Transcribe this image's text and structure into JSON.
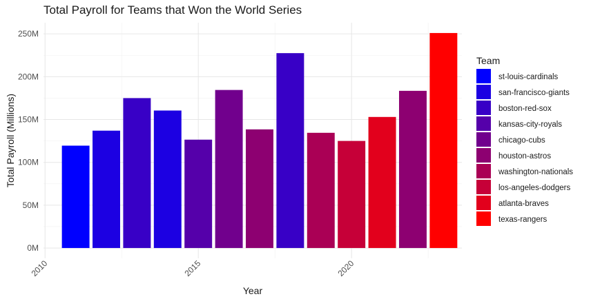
{
  "chart_data": {
    "type": "bar",
    "title": "Total Payroll for Teams that Won the World Series",
    "xlabel": "Year",
    "ylabel": "Total Payroll (Millions)",
    "x_ticks": [
      2010,
      2015,
      2020
    ],
    "x_tick_labels": [
      "2010",
      "2015",
      "2020"
    ],
    "xlim": [
      2009.95,
      2023.6
    ],
    "y_ticks": [
      0,
      50,
      100,
      150,
      200,
      250
    ],
    "y_tick_labels": [
      "0M",
      "50M",
      "100M",
      "150M",
      "200M",
      "250M"
    ],
    "ylim": [
      -12,
      263
    ],
    "grid": true,
    "legend": {
      "title": "Team",
      "position": "right",
      "entries": [
        {
          "label": "st-louis-cardinals",
          "color": "#0000FF"
        },
        {
          "label": "san-francisco-giants",
          "color": "#1C00E2"
        },
        {
          "label": "boston-red-sox",
          "color": "#3800C6"
        },
        {
          "label": "kansas-city-royals",
          "color": "#5500AA"
        },
        {
          "label": "chicago-cubs",
          "color": "#71008D"
        },
        {
          "label": "houston-astros",
          "color": "#8D0071"
        },
        {
          "label": "washington-nationals",
          "color": "#AA0055"
        },
        {
          "label": "los-angeles-dodgers",
          "color": "#C60038"
        },
        {
          "label": "atlanta-braves",
          "color": "#E2001C"
        },
        {
          "label": "texas-rangers",
          "color": "#FF0000"
        }
      ]
    },
    "bars": [
      {
        "year": 2011,
        "team": "st-louis-cardinals",
        "value": 119.5
      },
      {
        "year": 2012,
        "team": "san-francisco-giants",
        "value": 137
      },
      {
        "year": 2013,
        "team": "boston-red-sox",
        "value": 175
      },
      {
        "year": 2014,
        "team": "san-francisco-giants",
        "value": 160.5
      },
      {
        "year": 2015,
        "team": "kansas-city-royals",
        "value": 126.5
      },
      {
        "year": 2016,
        "team": "chicago-cubs",
        "value": 184.5
      },
      {
        "year": 2017,
        "team": "houston-astros",
        "value": 138.5
      },
      {
        "year": 2018,
        "team": "boston-red-sox",
        "value": 227.5
      },
      {
        "year": 2019,
        "team": "washington-nationals",
        "value": 134.5
      },
      {
        "year": 2020,
        "team": "los-angeles-dodgers",
        "value": 125
      },
      {
        "year": 2021,
        "team": "atlanta-braves",
        "value": 153
      },
      {
        "year": 2022,
        "team": "houston-astros",
        "value": 183.5
      },
      {
        "year": 2023,
        "team": "texas-rangers",
        "value": 251
      }
    ]
  }
}
